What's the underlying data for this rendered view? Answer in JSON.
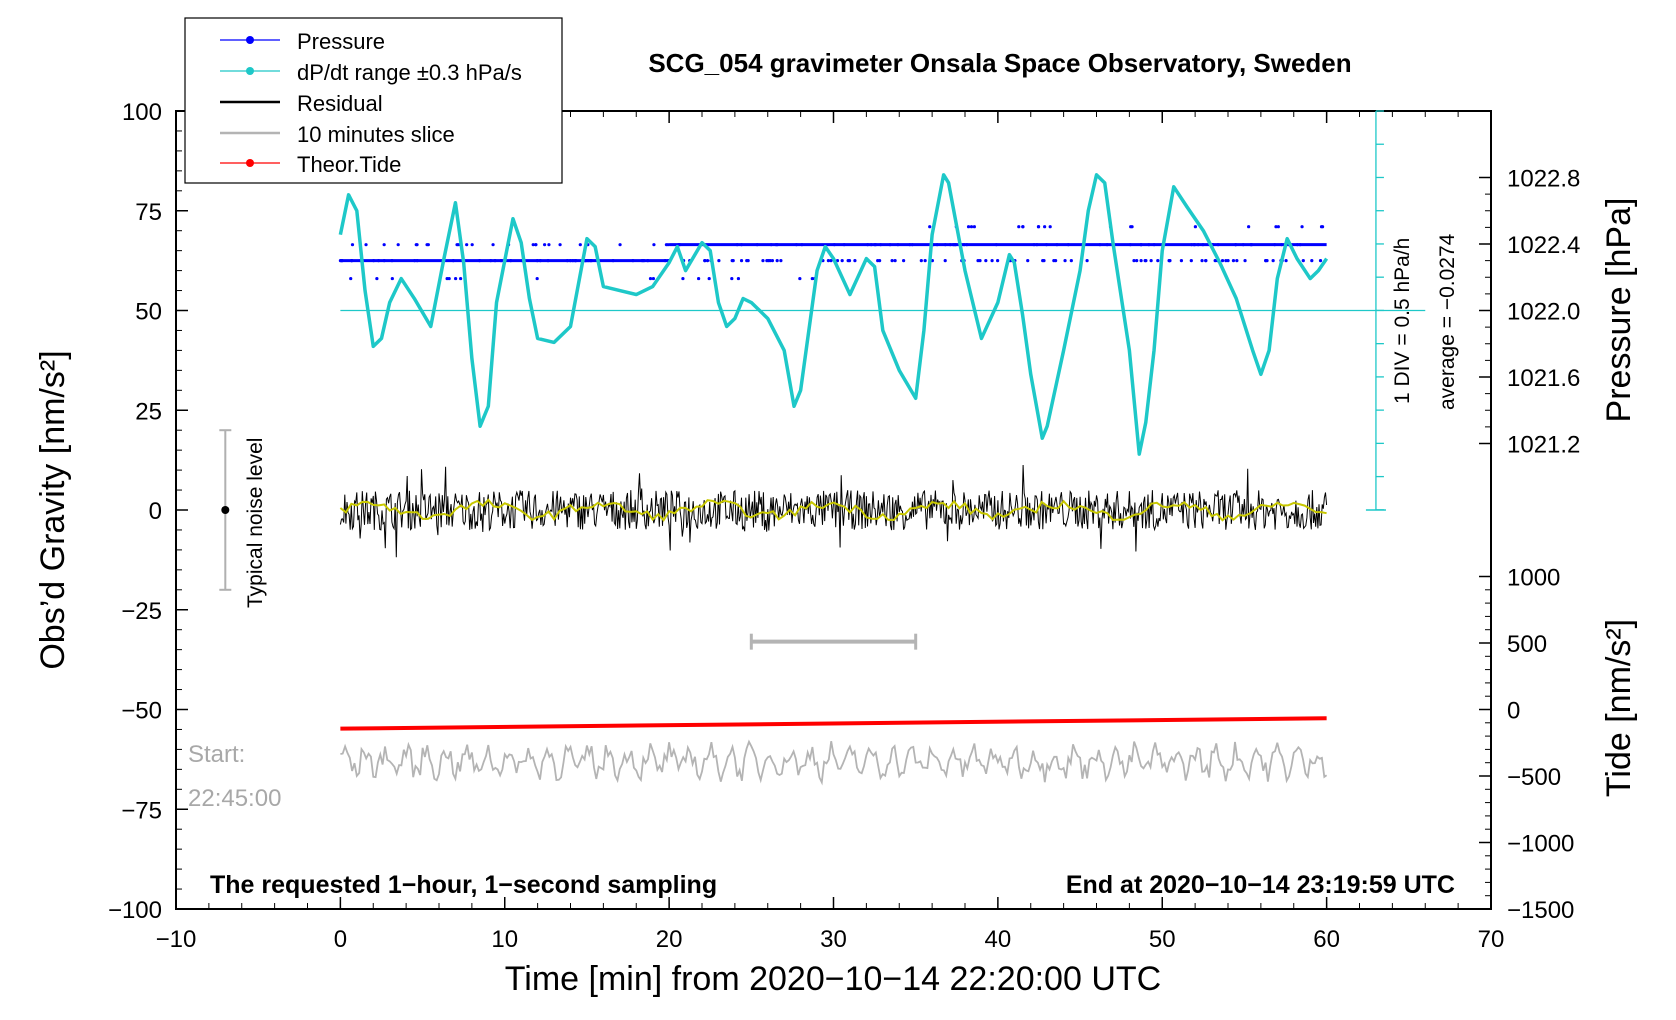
{
  "chart_data": {
    "type": "line",
    "title": "SCG_054 gravimeter Onsala Space Observatory, Sweden",
    "xlabel": "Time [min] from 2020−10−14 22:20:00 UTC",
    "ylabel_left": "Obs’d Gravity [nm/s²]",
    "ylabel_right_top": "Pressure [hPa]",
    "ylabel_right_bottom": "Tide [nm/s²]",
    "xlim": [
      -10,
      70
    ],
    "ylim": [
      -100,
      100
    ],
    "x_ticks": [
      "−10",
      "0",
      "10",
      "20",
      "30",
      "40",
      "50",
      "60",
      "70"
    ],
    "y_ticks": [
      "100",
      "75",
      "50",
      "25",
      "0",
      "−25",
      "−50",
      "−75",
      "−100"
    ],
    "pressure_ticks": [
      "1022.8",
      "1022.4",
      "1022.0",
      "1021.6",
      "1021.2"
    ],
    "tide_ticks": [
      "1000",
      "500",
      "0",
      "−500",
      "−1000",
      "−1500"
    ],
    "legend": [
      {
        "label": "Pressure",
        "color": "#0000ff"
      },
      {
        "label": "dP/dt range ±0.3 hPa/s",
        "color": "#1ec8c8"
      },
      {
        "label": "Residual",
        "color": "#000000"
      },
      {
        "label": "10 minutes slice",
        "color": "#b4b4b4"
      },
      {
        "label": "Theor.Tide",
        "color": "#ff0000"
      }
    ],
    "annotations": {
      "noise": "Typical noise level",
      "div": "1 DIV = 0.5 hPa/h",
      "average": "average = −0.0274",
      "start_label": "Start:",
      "start_time": "22:45:00",
      "bottom_left": "The requested 1−hour, 1−second sampling",
      "bottom_right": "End at 2020−10−14 23:19:59 UTC"
    },
    "pressure_levels": [
      62.5,
      66.5
    ],
    "pressure_switch_min": 20,
    "dpdt_points": [
      [
        0,
        69
      ],
      [
        0.5,
        79
      ],
      [
        1,
        75
      ],
      [
        1.5,
        55
      ],
      [
        2,
        41
      ],
      [
        2.5,
        43
      ],
      [
        3,
        52
      ],
      [
        3.7,
        58
      ],
      [
        4.5,
        53
      ],
      [
        5.5,
        46
      ],
      [
        6.3,
        63
      ],
      [
        7,
        77
      ],
      [
        7.5,
        62
      ],
      [
        8,
        38
      ],
      [
        8.5,
        21
      ],
      [
        9,
        26
      ],
      [
        9.5,
        52
      ],
      [
        10.5,
        73
      ],
      [
        11,
        67
      ],
      [
        11.5,
        53
      ],
      [
        12,
        43
      ],
      [
        13,
        42
      ],
      [
        14,
        46
      ],
      [
        15,
        68
      ],
      [
        15.5,
        66
      ],
      [
        16,
        56
      ],
      [
        17,
        55
      ],
      [
        18,
        54
      ],
      [
        19,
        56
      ],
      [
        20,
        62
      ],
      [
        20.5,
        66
      ],
      [
        21,
        60
      ],
      [
        22,
        67
      ],
      [
        22.5,
        65
      ],
      [
        23,
        52
      ],
      [
        23.5,
        46
      ],
      [
        24,
        48
      ],
      [
        24.5,
        53
      ],
      [
        25,
        52
      ],
      [
        26,
        48
      ],
      [
        27,
        40
      ],
      [
        27.6,
        26
      ],
      [
        28,
        30
      ],
      [
        29,
        60
      ],
      [
        29.5,
        66
      ],
      [
        30,
        63
      ],
      [
        31,
        54
      ],
      [
        32,
        63
      ],
      [
        32.5,
        61
      ],
      [
        33,
        45
      ],
      [
        34,
        35
      ],
      [
        35,
        28
      ],
      [
        35.5,
        45
      ],
      [
        36,
        69
      ],
      [
        36.7,
        84
      ],
      [
        37,
        82
      ],
      [
        38,
        60
      ],
      [
        39,
        43
      ],
      [
        40,
        52
      ],
      [
        40.7,
        64
      ],
      [
        41,
        62
      ],
      [
        41.5,
        49
      ],
      [
        42,
        34
      ],
      [
        42.7,
        18
      ],
      [
        43,
        21
      ],
      [
        44,
        40
      ],
      [
        45,
        60
      ],
      [
        45.5,
        75
      ],
      [
        46,
        84
      ],
      [
        46.5,
        82
      ],
      [
        47,
        67
      ],
      [
        48,
        40
      ],
      [
        48.6,
        14
      ],
      [
        49,
        22
      ],
      [
        49.5,
        40
      ],
      [
        50,
        65
      ],
      [
        50.7,
        81
      ],
      [
        51.5,
        76
      ],
      [
        52.5,
        70
      ],
      [
        53.5,
        62
      ],
      [
        54.5,
        53
      ],
      [
        55.5,
        40
      ],
      [
        56,
        34
      ],
      [
        56.5,
        40
      ],
      [
        57,
        58
      ],
      [
        57.6,
        68
      ],
      [
        58.2,
        63
      ],
      [
        59,
        58
      ],
      [
        59.5,
        60
      ],
      [
        60,
        63
      ]
    ],
    "residual_amplitude": 5,
    "slice_bar": {
      "x_start": 25,
      "x_end": 35
    },
    "noise_bar": {
      "x": -7,
      "low": -20,
      "high": 20
    }
  }
}
